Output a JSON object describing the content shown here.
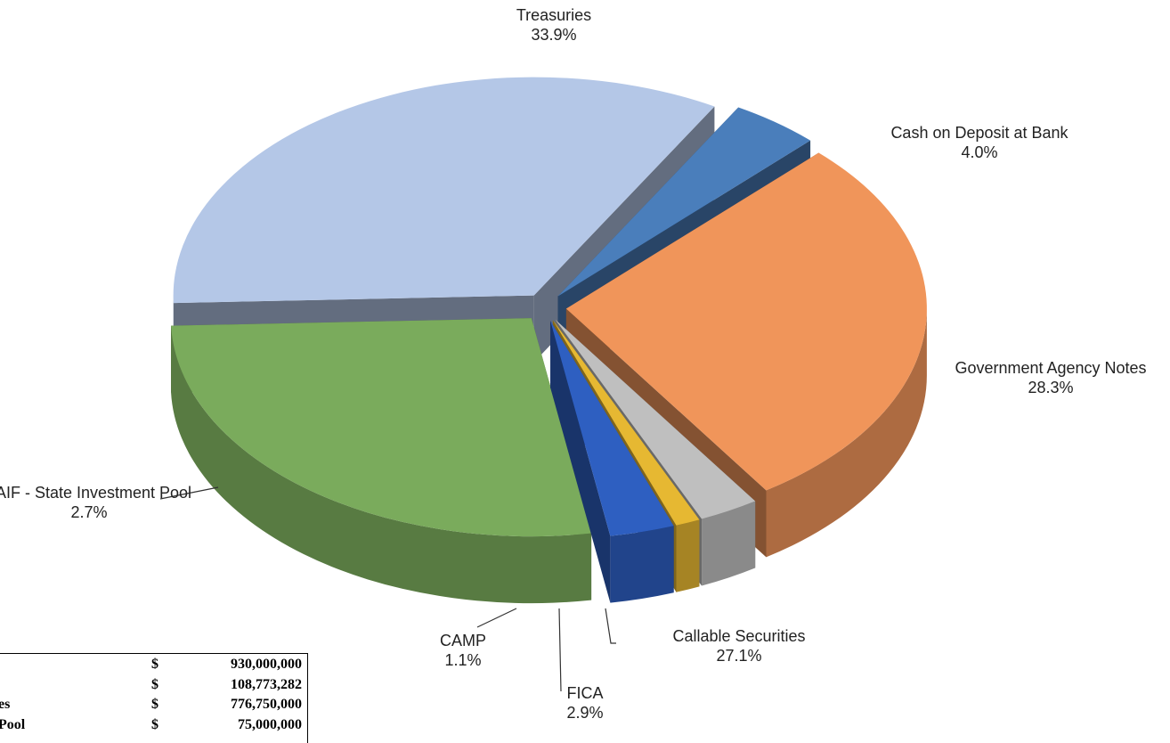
{
  "chart_data": {
    "type": "pie",
    "categories": [
      "Treasuries",
      "Cash on Deposit at Bank",
      "Government Agency Notes",
      "LAIF - State Investment Pool",
      "CAMP",
      "FICA",
      "Callable Securities"
    ],
    "values": [
      33.9,
      4.0,
      28.3,
      2.7,
      1.1,
      2.9,
      27.1
    ],
    "value_labels": [
      "33.9%",
      "4.0%",
      "28.3%",
      "2.7%",
      "1.1%",
      "2.9%",
      "27.1%"
    ],
    "colors": [
      "#b4c7e7",
      "#4a7ebb",
      "#f0955a",
      "#bfbfbf",
      "#e6b832",
      "#2e5fc1",
      "#7aab5c"
    ]
  },
  "table": {
    "rows": [
      {
        "currency": "$",
        "amount": "930,000,000"
      },
      {
        "currency": "$",
        "amount": "108,773,282"
      },
      {
        "label": "es",
        "currency": "$",
        "amount": "776,750,000"
      },
      {
        "label": "Pool",
        "currency": "$",
        "amount": "75,000,000"
      }
    ]
  }
}
